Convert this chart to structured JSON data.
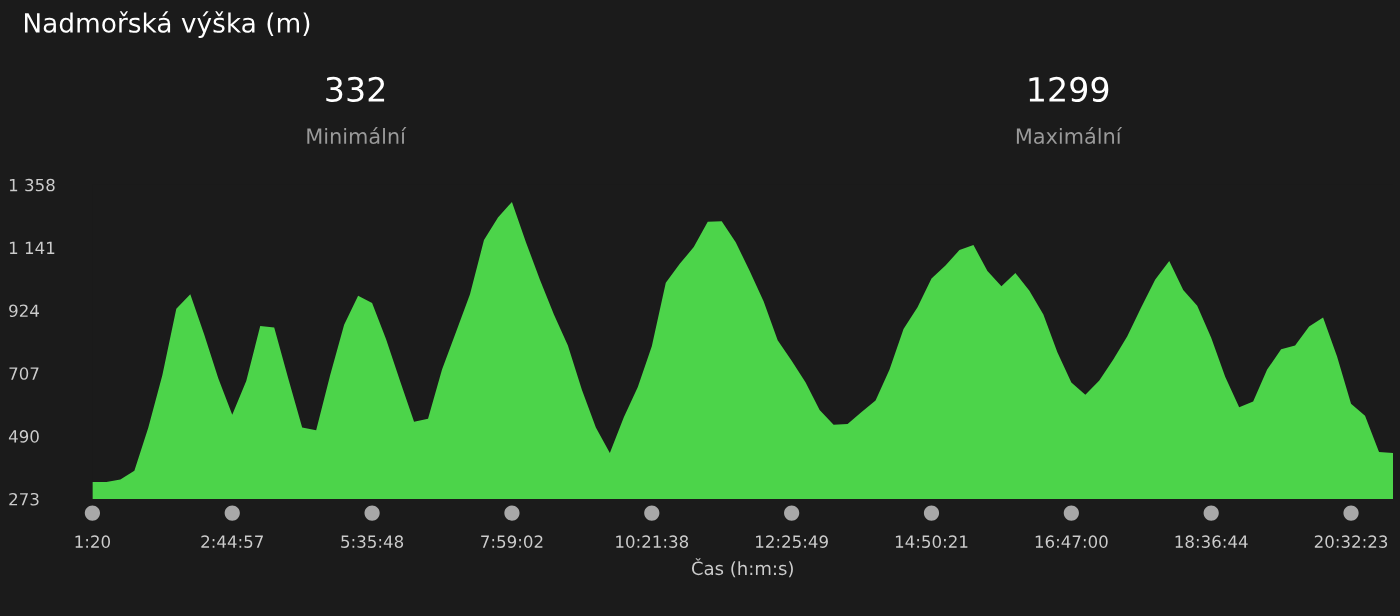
{
  "chart_data": {
    "type": "area",
    "title": "Nadmořská výška (m)",
    "xlabel": "Čas (h:m:s)",
    "annotations": [
      "332",
      "Minimální",
      "1299",
      "Maximální"
    ],
    "categories": [
      "1:20",
      null,
      null,
      null,
      null,
      null,
      null,
      null,
      null,
      null,
      "2:44:57",
      null,
      null,
      null,
      null,
      null,
      null,
      null,
      null,
      null,
      "5:35:48",
      null,
      null,
      null,
      null,
      null,
      null,
      null,
      null,
      null,
      "7:59:02",
      null,
      null,
      null,
      null,
      null,
      null,
      null,
      null,
      null,
      "10:21:38",
      null,
      null,
      null,
      null,
      null,
      null,
      null,
      null,
      null,
      "12:25:49",
      null,
      null,
      null,
      null,
      null,
      null,
      null,
      null,
      null,
      "14:50:21",
      null,
      null,
      null,
      null,
      null,
      null,
      null,
      null,
      null,
      "16:47:00",
      null,
      null,
      null,
      null,
      null,
      null,
      null,
      null,
      null,
      "18:36:44",
      null,
      null,
      null,
      null,
      null,
      null,
      null,
      null,
      null,
      "20:32:23",
      null,
      null,
      null
    ],
    "series": [
      {
        "color": "#4cd44a",
        "values": [
          332,
          332,
          340,
          370,
          520,
          700,
          930,
          980,
          840,
          690,
          564,
          680,
          870,
          865,
          690,
          520,
          510,
          700,
          875,
          975,
          950,
          825,
          680,
          540,
          550,
          720,
          850,
          980,
          1167,
          1245,
          1299,
          1160,
          1030,
          910,
          803,
          650,
          520,
          432,
          555,
          660,
          800,
          1020,
          1085,
          1143,
          1230,
          1232,
          1160,
          1060,
          955,
          821,
          750,
          675,
          580,
          529,
          532,
          573,
          613,
          720,
          860,
          935,
          1034,
          1079,
          1133,
          1150,
          1060,
          1008,
          1053,
          992,
          910,
          780,
          675,
          633,
          682,
          755,
          835,
          935,
          1031,
          1095,
          995,
          940,
          830,
          695,
          590,
          610,
          720,
          790,
          803,
          869,
          900,
          765,
          602,
          560,
          435,
          432
        ]
      }
    ],
    "ylim": [
      273,
      1358
    ],
    "yticks": [
      273,
      490,
      707,
      924,
      {
        "value": 1141,
        "label": "1 141"
      },
      {
        "value": 1358,
        "label": "1 358"
      }
    ]
  }
}
